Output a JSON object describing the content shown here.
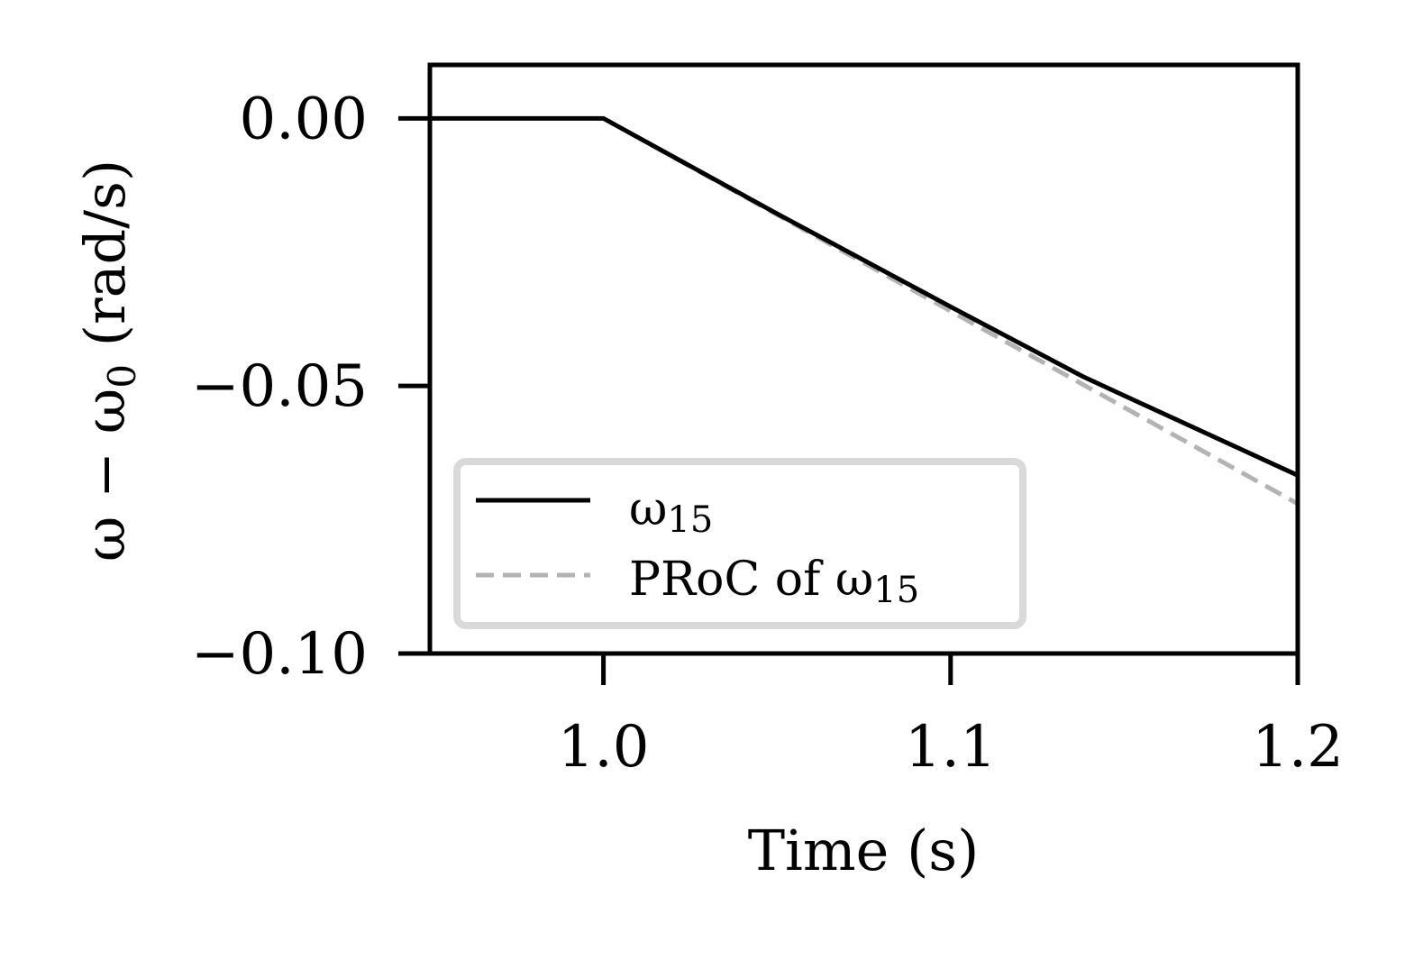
{
  "chart_data": {
    "type": "line",
    "title": "",
    "xlabel": "Time (s)",
    "ylabel": "ω − ω0 (rad/s)",
    "ylabel_parts": {
      "main": "ω − ω",
      "sub": "0",
      "unit": " (rad/s)"
    },
    "xlim": [
      0.95,
      1.2
    ],
    "ylim": [
      -0.1,
      0.01
    ],
    "xticks": [
      1.0,
      1.1,
      1.2
    ],
    "xtick_labels": [
      "1.0",
      "1.1",
      "1.2"
    ],
    "yticks": [
      0.0,
      -0.05,
      -0.1
    ],
    "ytick_labels": [
      "0.00",
      "−0.05",
      "−0.10"
    ],
    "grid": false,
    "legend_position": "lower left",
    "series": [
      {
        "name": "ω15",
        "legend_main": "ω",
        "legend_sub": "15",
        "style": "solid",
        "color": "#000000",
        "x": [
          0.95,
          1.0,
          1.05,
          1.1,
          1.138,
          1.15,
          1.2
        ],
        "y": [
          0.0,
          0.0,
          -0.0178,
          -0.0352,
          -0.0482,
          -0.0518,
          -0.0667
        ]
      },
      {
        "name": "PRoC of ω15",
        "legend_main": "PRoC of ω",
        "legend_sub": "15",
        "style": "dashed",
        "color": "#b3b3b3",
        "x": [
          1.0,
          1.1,
          1.2
        ],
        "y": [
          0.0,
          -0.036,
          -0.072
        ]
      }
    ]
  },
  "colors": {
    "axis": "#000000",
    "legend_border": "#d9d9d9",
    "background": "#ffffff"
  }
}
